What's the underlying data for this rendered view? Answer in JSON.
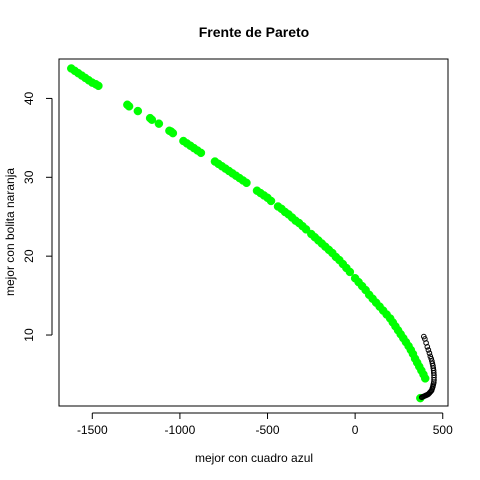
{
  "chart_data": {
    "type": "scatter",
    "title": "Frente de Pareto",
    "xlabel": "mejor con cuadro azul",
    "ylabel": "mejor con bolita naranja",
    "xlim": [
      -1690,
      530
    ],
    "ylim": [
      1,
      45
    ],
    "xticks": [
      -1500,
      -1000,
      -500,
      0,
      500
    ],
    "yticks": [
      10,
      20,
      30,
      40
    ],
    "grid": false,
    "series": [
      {
        "color": "#00ff00",
        "marker": "filled-circle",
        "x": [
          -1620,
          -1600,
          -1580,
          -1560,
          -1540,
          -1520,
          -1500,
          -1480,
          -1465,
          -1300,
          -1290,
          -1240,
          -1170,
          -1160,
          -1120,
          -1060,
          -1050,
          -1040,
          -980,
          -960,
          -940,
          -920,
          -900,
          -880,
          -800,
          -780,
          -760,
          -740,
          -720,
          -700,
          -680,
          -660,
          -640,
          -620,
          -560,
          -540,
          -520,
          -500,
          -480,
          -440,
          -420,
          -400,
          -380,
          -360,
          -340,
          -320,
          -300,
          -280,
          -250,
          -230,
          -210,
          -190,
          -170,
          -150,
          -130,
          -110,
          -90,
          -70,
          -50,
          -30,
          0,
          20,
          40,
          60,
          80,
          100,
          120,
          140,
          160,
          180,
          200,
          215,
          230,
          245,
          260,
          275,
          290,
          305,
          318,
          330,
          342,
          354,
          366,
          378,
          390,
          400,
          372
        ],
        "y": [
          43.8,
          43.5,
          43.2,
          42.9,
          42.6,
          42.3,
          42.0,
          41.8,
          41.6,
          39.2,
          39.0,
          38.4,
          37.5,
          37.3,
          36.8,
          35.9,
          35.8,
          35.6,
          34.6,
          34.3,
          34.0,
          33.7,
          33.4,
          33.1,
          32.0,
          31.7,
          31.4,
          31.1,
          30.8,
          30.5,
          30.2,
          29.9,
          29.6,
          29.3,
          28.3,
          28.0,
          27.7,
          27.4,
          27.0,
          26.3,
          26.0,
          25.6,
          25.3,
          24.9,
          24.5,
          24.2,
          23.8,
          23.4,
          22.8,
          22.4,
          22.0,
          21.6,
          21.2,
          20.8,
          20.4,
          19.9,
          19.5,
          19.0,
          18.5,
          18.0,
          17.2,
          16.7,
          16.2,
          15.7,
          15.1,
          14.6,
          14.1,
          13.6,
          13.1,
          12.6,
          12.1,
          11.6,
          11.1,
          10.6,
          10.1,
          9.6,
          9.1,
          8.6,
          8.1,
          7.6,
          7.0,
          6.5,
          6.0,
          5.5,
          5.0,
          4.5,
          2.0
        ]
      },
      {
        "color": "#000000",
        "marker": "open-circle",
        "x": [
          392,
          398,
          405,
          412,
          418,
          424,
          429,
          434,
          438,
          441,
          444,
          446,
          448,
          449,
          450,
          450,
          450,
          449,
          447,
          445,
          443,
          440,
          437,
          434,
          430,
          426,
          422,
          418,
          414,
          409,
          404,
          399,
          394,
          389,
          384,
          380
        ],
        "y": [
          9.8,
          9.5,
          9.0,
          8.5,
          8.1,
          7.7,
          7.3,
          7.0,
          6.7,
          6.4,
          6.1,
          5.8,
          5.5,
          5.2,
          4.9,
          4.6,
          4.3,
          4.0,
          3.8,
          3.6,
          3.4,
          3.2,
          3.0,
          2.9,
          2.8,
          2.7,
          2.6,
          2.5,
          2.45,
          2.4,
          2.35,
          2.3,
          2.25,
          2.2,
          2.15,
          2.1
        ]
      }
    ]
  }
}
